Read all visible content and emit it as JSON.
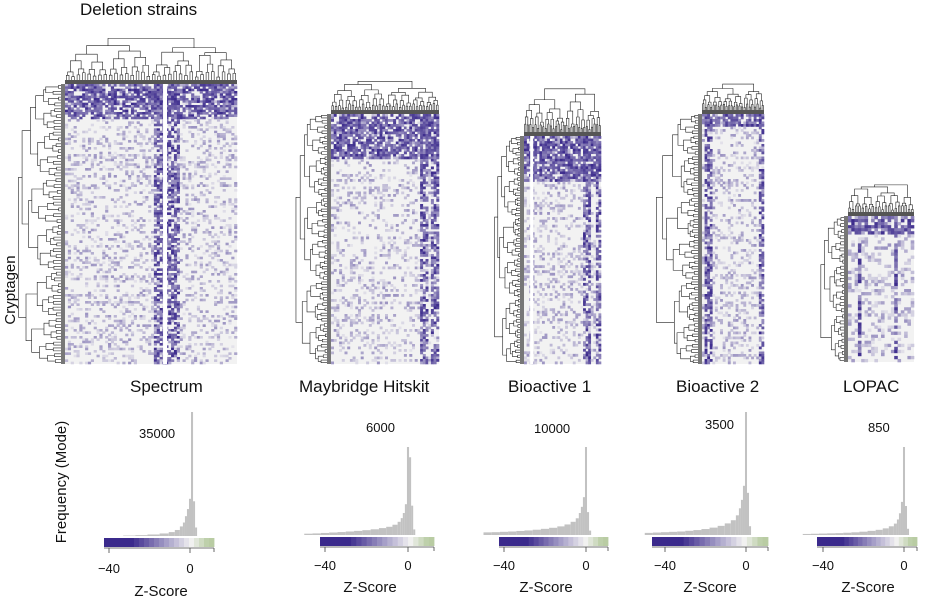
{
  "figure": {
    "top_label": "Deletion strains",
    "side_label": "Cryptagen",
    "hist_ylabel": "Frequency (Mode)",
    "hist_xlabel": "Z-Score"
  },
  "colors": {
    "low": "#3b2a8c",
    "mid": "#f2f2f2",
    "high": "#c9d8b6",
    "dendrogram": "#222222",
    "histogram_bar": "#c2c2c2"
  },
  "chart_data": [
    {
      "type": "heatmap",
      "title": "Spectrum",
      "row_label": "Cryptagen",
      "column_label": "Deletion strains",
      "clustering": "hierarchical (rows and columns)",
      "color_scale": "Z-Score"
    },
    {
      "type": "heatmap",
      "title": "Maybridge Hitskit",
      "clustering": "hierarchical (rows and columns)",
      "color_scale": "Z-Score"
    },
    {
      "type": "heatmap",
      "title": "Bioactive 1",
      "clustering": "hierarchical (rows and columns)",
      "color_scale": "Z-Score"
    },
    {
      "type": "heatmap",
      "title": "Bioactive 2",
      "clustering": "hierarchical (rows and columns)",
      "color_scale": "Z-Score"
    },
    {
      "type": "heatmap",
      "title": "LOPAC",
      "clustering": "hierarchical (rows and columns)",
      "color_scale": "Z-Score"
    },
    {
      "type": "bar",
      "title": "",
      "panel": "Spectrum",
      "xlabel": "Z-Score",
      "ylabel": "Frequency (Mode)",
      "mode_label": "35000",
      "xlim": [
        -50,
        12
      ],
      "x_ticks": [
        -40,
        0
      ],
      "x_tick_labels": [
        "−40",
        "0"
      ],
      "ylim": [
        0,
        35000
      ],
      "bin_centers": [
        -30,
        -24,
        -18,
        -12,
        -9,
        -6,
        -4,
        -3,
        -2,
        -1,
        0,
        1,
        2,
        3
      ],
      "values": [
        120,
        240,
        420,
        720,
        1100,
        1700,
        2700,
        3800,
        5600,
        7600,
        10500,
        35000,
        9800,
        2400
      ]
    },
    {
      "type": "bar",
      "title": "",
      "panel": "Maybridge Hitskit",
      "xlabel": "Z-Score",
      "mode_label": "6000",
      "xlim": [
        -50,
        12
      ],
      "x_ticks": [
        -40,
        0
      ],
      "x_tick_labels": [
        "−40",
        "0"
      ],
      "ylim": [
        0,
        6000
      ],
      "bin_centers": [
        -48,
        -44,
        -40,
        -36,
        -32,
        -28,
        -24,
        -20,
        -16,
        -12,
        -9,
        -6,
        -4,
        -3,
        -2,
        -1,
        0,
        1,
        2,
        3
      ],
      "values": [
        90,
        110,
        140,
        170,
        200,
        240,
        280,
        330,
        390,
        470,
        560,
        700,
        900,
        1150,
        1500,
        2100,
        6000,
        5300,
        2000,
        380
      ]
    },
    {
      "type": "bar",
      "title": "",
      "panel": "Bioactive 1",
      "xlabel": "Z-Score",
      "mode_label": "10000",
      "xlim": [
        -50,
        12
      ],
      "x_ticks": [
        -40,
        0
      ],
      "x_tick_labels": [
        "−40",
        "0"
      ],
      "ylim": [
        0,
        10000
      ],
      "bin_centers": [
        -48,
        -44,
        -40,
        -36,
        -32,
        -28,
        -24,
        -20,
        -16,
        -12,
        -9,
        -6,
        -4,
        -3,
        -2,
        -1,
        0,
        1,
        2
      ],
      "values": [
        300,
        320,
        360,
        400,
        460,
        520,
        600,
        700,
        820,
        980,
        1200,
        1500,
        1900,
        2500,
        3200,
        4300,
        10000,
        2600,
        500
      ]
    },
    {
      "type": "bar",
      "title": "",
      "panel": "Bioactive 2",
      "xlabel": "Z-Score",
      "mode_label": "3500",
      "xlim": [
        -50,
        12
      ],
      "x_ticks": [
        -40,
        0
      ],
      "x_tick_labels": [
        "−40",
        "0"
      ],
      "ylim": [
        0,
        3500
      ],
      "bin_centers": [
        -48,
        -44,
        -40,
        -36,
        -32,
        -28,
        -24,
        -20,
        -16,
        -12,
        -9,
        -6,
        -4,
        -3,
        -2,
        -1,
        0,
        1,
        2
      ],
      "values": [
        60,
        70,
        80,
        90,
        100,
        120,
        140,
        170,
        210,
        260,
        330,
        420,
        560,
        760,
        1000,
        1400,
        3500,
        1200,
        250
      ]
    },
    {
      "type": "bar",
      "title": "",
      "panel": "LOPAC",
      "xlabel": "Z-Score",
      "mode_label": "850",
      "xlim": [
        -50,
        12
      ],
      "x_ticks": [
        -40,
        0
      ],
      "x_tick_labels": [
        "−40",
        "0"
      ],
      "ylim": [
        0,
        850
      ],
      "bin_centers": [
        -48,
        -44,
        -40,
        -36,
        -32,
        -28,
        -24,
        -20,
        -16,
        -12,
        -9,
        -6,
        -4,
        -3,
        -2,
        -1,
        0,
        1,
        2
      ],
      "values": [
        10,
        12,
        14,
        16,
        18,
        22,
        26,
        32,
        40,
        50,
        64,
        84,
        110,
        150,
        210,
        320,
        850,
        280,
        60
      ]
    }
  ]
}
